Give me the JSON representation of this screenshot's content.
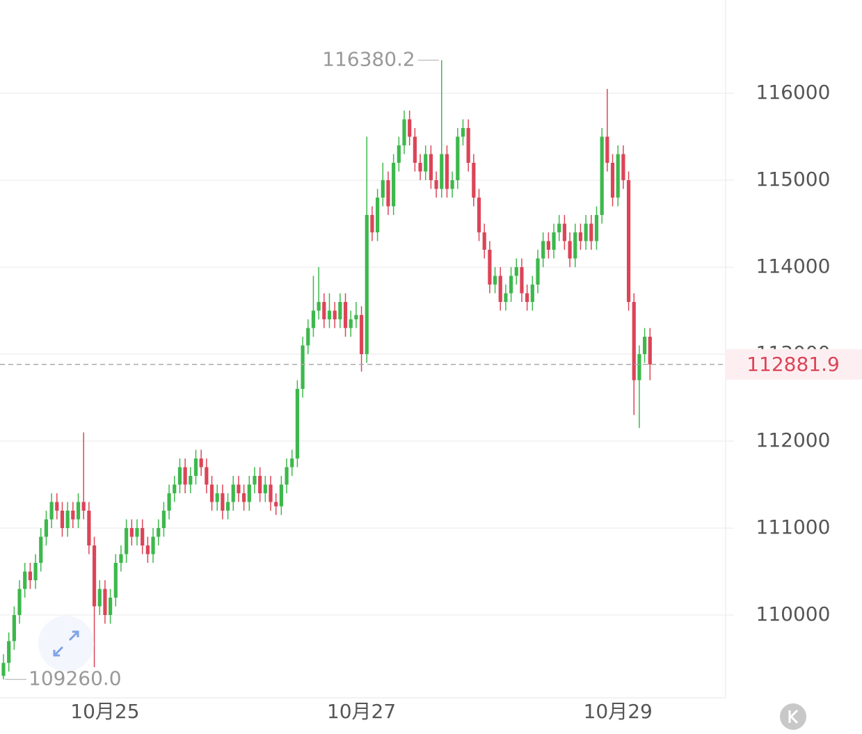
{
  "chart_data": {
    "type": "candlestick",
    "categories": [
      null,
      null,
      null,
      null,
      null,
      null,
      null,
      null,
      null,
      null,
      null,
      null,
      null,
      null,
      null,
      null,
      null,
      null,
      null,
      "10月25",
      null,
      null,
      null,
      null,
      null,
      null,
      null,
      null,
      null,
      null,
      null,
      null,
      null,
      null,
      null,
      null,
      null,
      null,
      null,
      null,
      null,
      null,
      null,
      null,
      null,
      null,
      null,
      null,
      null,
      null,
      null,
      null,
      null,
      null,
      null,
      null,
      null,
      null,
      null,
      null,
      null,
      null,
      null,
      null,
      null,
      null,
      null,
      "10月27",
      null,
      null,
      null,
      null,
      null,
      null,
      null,
      null,
      null,
      null,
      null,
      null,
      null,
      null,
      null,
      null,
      null,
      null,
      null,
      null,
      null,
      null,
      null,
      null,
      null,
      null,
      null,
      null,
      null,
      null,
      null,
      null,
      null,
      null,
      null,
      null,
      null,
      null,
      null,
      null,
      null,
      null,
      null,
      null,
      null,
      null,
      null,
      "10月29",
      null,
      null,
      null,
      null,
      null,
      null
    ],
    "open": [
      109300,
      109450,
      109700,
      110000,
      110300,
      110500,
      110400,
      110600,
      110900,
      111100,
      111300,
      111200,
      111000,
      111200,
      111100,
      111300,
      111200,
      110800,
      110100,
      110300,
      110000,
      110200,
      110600,
      110700,
      111000,
      110900,
      111000,
      110800,
      110700,
      110900,
      111000,
      111200,
      111400,
      111500,
      111700,
      111500,
      111600,
      111800,
      111700,
      111500,
      111300,
      111400,
      111200,
      111300,
      111500,
      111400,
      111300,
      111500,
      111600,
      111400,
      111500,
      111300,
      111250,
      111500,
      111700,
      111800,
      112600,
      113100,
      113300,
      113500,
      113600,
      113400,
      113500,
      113400,
      113600,
      113300,
      113400,
      113450,
      113000,
      114600,
      114400,
      114800,
      115000,
      114700,
      115200,
      115400,
      115700,
      115500,
      115200,
      115100,
      115300,
      115000,
      114900,
      115300,
      114900,
      115000,
      115500,
      115600,
      115200,
      114800,
      114400,
      114200,
      113800,
      113900,
      113600,
      113700,
      113900,
      114000,
      113700,
      113600,
      113800,
      114100,
      114300,
      114200,
      114400,
      114500,
      114300,
      114100,
      114400,
      114300,
      114500,
      114300,
      114600,
      115500,
      115200,
      114800,
      115300,
      115000,
      113600,
      112700,
      113000,
      113200
    ],
    "high": [
      109550,
      109800,
      110100,
      110400,
      110600,
      110600,
      110700,
      111000,
      111200,
      111400,
      111400,
      111300,
      111300,
      111300,
      111400,
      112100,
      111300,
      110900,
      110400,
      110400,
      110300,
      110700,
      110800,
      111100,
      111100,
      111100,
      111100,
      110900,
      111000,
      111100,
      111300,
      111500,
      111600,
      111800,
      111800,
      111700,
      111900,
      111900,
      111800,
      111600,
      111500,
      111500,
      111400,
      111600,
      111600,
      111500,
      111600,
      111700,
      111700,
      111600,
      111600,
      111400,
      111600,
      111800,
      111900,
      112700,
      113200,
      113400,
      113900,
      114000,
      113700,
      113700,
      113600,
      113700,
      113700,
      113500,
      113600,
      113550,
      115500,
      114700,
      114900,
      115200,
      115100,
      115300,
      115500,
      115800,
      115800,
      115600,
      115300,
      115400,
      115400,
      115100,
      116380.2,
      115400,
      115100,
      115600,
      115700,
      115700,
      115300,
      114900,
      114500,
      114300,
      114000,
      114000,
      113800,
      114000,
      114100,
      114100,
      113800,
      113900,
      114200,
      114400,
      114400,
      114500,
      114600,
      114600,
      114400,
      114500,
      114500,
      114600,
      114600,
      114700,
      115600,
      116050,
      115300,
      115400,
      115400,
      115100,
      113700,
      113100,
      113300,
      113300
    ],
    "low": [
      109260,
      109350,
      109600,
      109900,
      110200,
      110300,
      110300,
      110500,
      110800,
      111000,
      111100,
      110900,
      110900,
      111000,
      111000,
      111100,
      110700,
      109400,
      110000,
      109900,
      109900,
      110100,
      110500,
      110600,
      110800,
      110800,
      110700,
      110600,
      110600,
      110800,
      110900,
      111100,
      111300,
      111400,
      111400,
      111400,
      111500,
      111600,
      111400,
      111200,
      111200,
      111100,
      111100,
      111200,
      111300,
      111200,
      111200,
      111400,
      111300,
      111300,
      111200,
      111150,
      111150,
      111400,
      111600,
      111700,
      112500,
      113000,
      113200,
      113400,
      113300,
      113300,
      113300,
      113300,
      113200,
      113200,
      113300,
      112800,
      112900,
      114300,
      114300,
      114700,
      114600,
      114600,
      115100,
      115300,
      115400,
      115100,
      115000,
      115000,
      114900,
      114800,
      114800,
      114800,
      114800,
      114900,
      115400,
      115100,
      114700,
      114300,
      114100,
      113700,
      113700,
      113500,
      113500,
      113600,
      113800,
      113600,
      113500,
      113500,
      113700,
      114000,
      114100,
      114100,
      114300,
      114200,
      114000,
      114000,
      114200,
      114200,
      114200,
      114200,
      114500,
      115100,
      114700,
      114700,
      114900,
      113500,
      112300,
      112150,
      112900,
      112700
    ],
    "close": [
      109450,
      109700,
      110000,
      110300,
      110500,
      110400,
      110600,
      110900,
      111100,
      111300,
      111200,
      111000,
      111200,
      111100,
      111300,
      111200,
      110800,
      110100,
      110300,
      110000,
      110200,
      110600,
      110700,
      111000,
      110900,
      111000,
      110800,
      110700,
      110900,
      111000,
      111200,
      111400,
      111500,
      111700,
      111500,
      111600,
      111800,
      111700,
      111500,
      111300,
      111400,
      111200,
      111300,
      111500,
      111400,
      111300,
      111500,
      111600,
      111400,
      111500,
      111300,
      111250,
      111500,
      111700,
      111800,
      112600,
      113100,
      113300,
      113500,
      113600,
      113400,
      113500,
      113400,
      113600,
      113300,
      113400,
      113450,
      113000,
      114600,
      114400,
      114800,
      115000,
      114700,
      115200,
      115400,
      115700,
      115500,
      115200,
      115100,
      115300,
      115000,
      114900,
      115300,
      114900,
      115000,
      115500,
      115600,
      115200,
      114800,
      114400,
      114200,
      113800,
      113900,
      113600,
      113700,
      113900,
      114000,
      113700,
      113600,
      113800,
      114100,
      114300,
      114200,
      114400,
      114500,
      114300,
      114100,
      114400,
      114300,
      114500,
      114300,
      114600,
      115500,
      115200,
      114800,
      115300,
      115000,
      113600,
      112700,
      113000,
      113200,
      112881.9
    ],
    "up_color": "#3db84c",
    "down_color": "#dc4457",
    "ylim": [
      109048,
      117072
    ],
    "yticks": [
      110000,
      111000,
      112000,
      113000,
      114000,
      115000,
      116000
    ],
    "grid": true,
    "last_price": 112881.9,
    "annotations": [
      {
        "value": 116380.2,
        "label": "116380.2"
      },
      {
        "value": 109260,
        "label": "109260.0"
      }
    ]
  }
}
